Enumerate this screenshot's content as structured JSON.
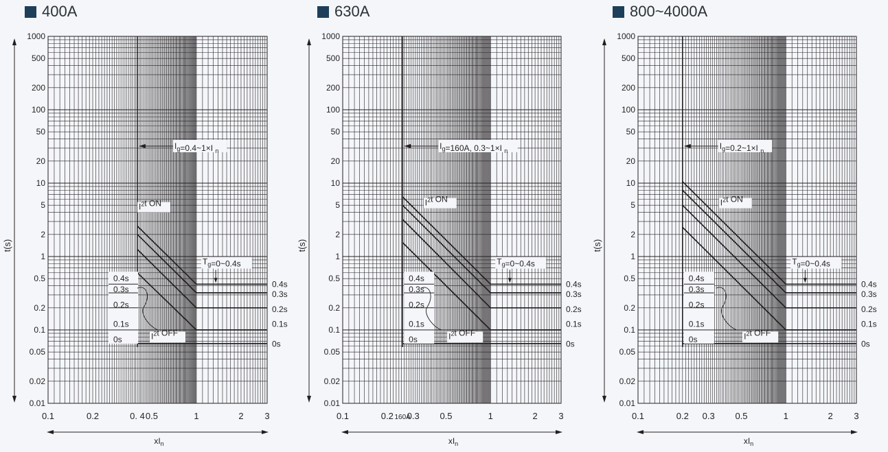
{
  "colors": {
    "title_square": "#1e3f5a",
    "grid": "#231f20",
    "background": "#f4f6f9"
  },
  "chart_data": [
    {
      "type": "line",
      "title": "400A",
      "xlabel": "xI n",
      "ylabel": "t(s)",
      "log_x": true,
      "log_y": true,
      "xlim": [
        0.1,
        3
      ],
      "ylim": [
        0.01,
        1000
      ],
      "x_ticks": [
        "0.1",
        "0.2",
        "0. 4",
        "0.5",
        "1",
        "2",
        "3"
      ],
      "x_tick_values": [
        0.1,
        0.2,
        0.4,
        0.5,
        1,
        2,
        3
      ],
      "y_ticks": [
        "0.01",
        "0.02",
        "0.05",
        "0.1",
        "0.2",
        "0.5",
        "1",
        "2",
        "5",
        "10",
        "20",
        "50",
        "100",
        "200",
        "500",
        "1000"
      ],
      "y_tick_values": [
        0.01,
        0.02,
        0.05,
        0.1,
        0.2,
        0.5,
        1,
        2,
        5,
        10,
        20,
        50,
        100,
        200,
        500,
        1000
      ],
      "ig_min": 0.4,
      "ig_label": "Ig=0.4~1×I n",
      "i2t_on_label": "I²t ON",
      "i2t_off_label": "I²t OFF",
      "tg_label": "Tg=0~0.4s",
      "series": [
        {
          "name": "0.4s",
          "points": [
            [
              0.4,
              2.6
            ],
            [
              1.0,
              0.42
            ],
            [
              3,
              0.42
            ]
          ]
        },
        {
          "name": "0.3s",
          "points": [
            [
              0.4,
              2.0
            ],
            [
              1.0,
              0.32
            ],
            [
              3,
              0.32
            ]
          ]
        },
        {
          "name": "0.2s",
          "points": [
            [
              0.4,
              1.25
            ],
            [
              1.0,
              0.2
            ],
            [
              3,
              0.2
            ]
          ]
        },
        {
          "name": "0.1s",
          "points": [
            [
              0.4,
              0.6
            ],
            [
              1.0,
              0.1
            ],
            [
              3,
              0.1
            ]
          ]
        },
        {
          "name": "0s",
          "points": [
            [
              0.4,
              0.065
            ],
            [
              3,
              0.065
            ]
          ]
        }
      ],
      "left_labels": [
        "0.4s",
        "0.3s",
        "0.2s",
        "0.1s",
        "0s"
      ],
      "right_labels": []
    },
    {
      "type": "line",
      "title": "630A",
      "xlabel": "xI n",
      "ylabel": "t(s)",
      "log_x": true,
      "log_y": true,
      "xlim": [
        0.1,
        3
      ],
      "ylim": [
        0.01,
        1000
      ],
      "x_ticks": [
        "0.1",
        "0.2",
        "160A",
        "0.3",
        "0.5",
        "1",
        "2",
        "3"
      ],
      "x_tick_values": [
        0.1,
        0.2,
        0.254,
        0.3,
        0.5,
        1,
        2,
        3
      ],
      "y_ticks": [
        "0.01",
        "0.02",
        "0.05",
        "0.1",
        "0.2",
        "0.5",
        "1",
        "2",
        "5",
        "10",
        "20",
        "50",
        "100",
        "200",
        "500",
        "1000"
      ],
      "y_tick_values": [
        0.01,
        0.02,
        0.05,
        0.1,
        0.2,
        0.5,
        1,
        2,
        5,
        10,
        20,
        50,
        100,
        200,
        500,
        1000
      ],
      "ig_min": 0.254,
      "ig_label": "Ig=160A, 0.3~1×I n",
      "i2t_on_label": "I²t ON",
      "i2t_off_label": "I²t OFF",
      "tg_label": "Tg=0~0.4s",
      "series": [
        {
          "name": "0.4s",
          "points": [
            [
              0.254,
              6.5
            ],
            [
              1.0,
              0.42
            ],
            [
              3,
              0.42
            ]
          ]
        },
        {
          "name": "0.3s",
          "points": [
            [
              0.254,
              5.0
            ],
            [
              1.0,
              0.32
            ],
            [
              3,
              0.32
            ]
          ]
        },
        {
          "name": "0.2s",
          "points": [
            [
              0.254,
              3.2
            ],
            [
              1.0,
              0.2
            ],
            [
              3,
              0.2
            ]
          ]
        },
        {
          "name": "0.1s",
          "points": [
            [
              0.254,
              1.55
            ],
            [
              1.0,
              0.1
            ],
            [
              3,
              0.1
            ]
          ]
        },
        {
          "name": "0s",
          "points": [
            [
              0.254,
              0.065
            ],
            [
              3,
              0.065
            ]
          ]
        }
      ],
      "left_labels": [
        "0.4s",
        "0.3s",
        "0.2s",
        "0.1s",
        "0s"
      ],
      "right_labels": [
        "0.4s",
        "0.3s",
        "0.2s",
        "0.1s",
        "0s"
      ]
    },
    {
      "type": "line",
      "title": "800~4000A",
      "xlabel": "xI n",
      "ylabel": "t(s)",
      "log_x": true,
      "log_y": true,
      "xlim": [
        0.1,
        3
      ],
      "ylim": [
        0.01,
        1000
      ],
      "x_ticks": [
        "0.1",
        "0.2",
        "0.3",
        "0.5",
        "1",
        "2",
        "3"
      ],
      "x_tick_values": [
        0.1,
        0.2,
        0.3,
        0.5,
        1,
        2,
        3
      ],
      "y_ticks": [
        "0.01",
        "0.02",
        "0.05",
        "0.1",
        "0.2",
        "0.5",
        "1",
        "2",
        "5",
        "10",
        "20",
        "50",
        "100",
        "200",
        "500",
        "1000"
      ],
      "y_tick_values": [
        0.01,
        0.02,
        0.05,
        0.1,
        0.2,
        0.5,
        1,
        2,
        5,
        10,
        20,
        50,
        100,
        200,
        500,
        1000
      ],
      "ig_min": 0.2,
      "ig_label": "Ig=0.2~1×I n",
      "i2t_on_label": "I²t ON",
      "i2t_off_label": "I²t OFF",
      "tg_label": "Tg=0~0.4s",
      "series": [
        {
          "name": "0.4s",
          "points": [
            [
              0.2,
              10.5
            ],
            [
              1.0,
              0.42
            ],
            [
              3,
              0.42
            ]
          ]
        },
        {
          "name": "0.3s",
          "points": [
            [
              0.2,
              8.0
            ],
            [
              1.0,
              0.32
            ],
            [
              3,
              0.32
            ]
          ]
        },
        {
          "name": "0.2s",
          "points": [
            [
              0.2,
              5.0
            ],
            [
              1.0,
              0.2
            ],
            [
              3,
              0.2
            ]
          ]
        },
        {
          "name": "0.1s",
          "points": [
            [
              0.2,
              2.5
            ],
            [
              1.0,
              0.1
            ],
            [
              3,
              0.1
            ]
          ]
        },
        {
          "name": "0s",
          "points": [
            [
              0.2,
              0.065
            ],
            [
              3,
              0.065
            ]
          ]
        }
      ],
      "left_labels": [
        "0.4s",
        "0.3s",
        "0.2s",
        "0.1s",
        "0s"
      ],
      "right_labels": [
        "0.4s",
        "0.3s",
        "0.2s",
        "0.1s",
        "0s"
      ]
    }
  ]
}
